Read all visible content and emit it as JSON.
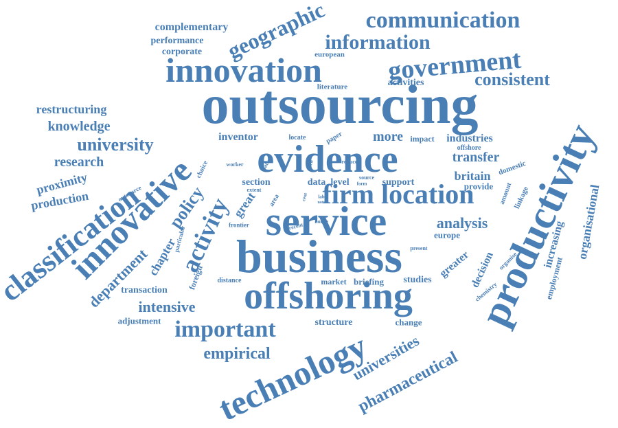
{
  "colors": {
    "word": "#4a7fb5",
    "background": "#ffffff"
  },
  "words": {
    "outsourcing": "outsourcing",
    "business": "business",
    "service": "service",
    "offshoring": "offshoring",
    "evidence": "evidence",
    "innovation": "innovation",
    "productivity": "productivity",
    "technology": "technology",
    "firm_location": "firm location",
    "innovative": "innovative",
    "classification": "classification",
    "government": "government",
    "communication": "communication",
    "geographic": "geographic",
    "information": "information",
    "consistent": "consistent",
    "important": "important",
    "activity": "activity",
    "university": "university",
    "universities": "universities",
    "pharmaceutical": "pharmaceutical",
    "empirical": "empirical",
    "intensive": "intensive",
    "department": "department",
    "policy": "policy",
    "knowledge": "knowledge",
    "research": "research",
    "restructuring": "restructuring",
    "proximity": "proximity",
    "production": "production",
    "complementary": "complementary",
    "performance": "performance",
    "corporate": "corporate",
    "analysis": "analysis",
    "transfer": "transfer",
    "britain": "britain",
    "industries": "industries",
    "more": "more",
    "inventor": "inventor",
    "great": "great",
    "chapter": "chapter",
    "organisational": "organisational",
    "increasing": "increasing",
    "employment": "employment",
    "greater": "greater",
    "decision": "decision",
    "structure": "structure",
    "section": "section",
    "support": "support",
    "data": "data",
    "level": "level",
    "activities": "activities",
    "european": "european",
    "literature": "literature",
    "transaction": "transaction",
    "adjustment": "adjustment",
    "studies": "studies",
    "briefing": "briefing",
    "market": "market",
    "change": "change",
    "europe": "europe",
    "provide": "provide",
    "domestic": "domestic",
    "offshore": "offshore",
    "impact": "impact",
    "locate": "locate",
    "paper": "paper",
    "idea": "idea",
    "reduce": "reduce",
    "source": "source",
    "form": "form",
    "worker": "worker",
    "patent": "patent",
    "choice": "choice",
    "extent": "extent",
    "area": "area",
    "cent": "cent",
    "lab": "lab",
    "note": "note",
    "present": "present",
    "recent": "recent",
    "house": "house",
    "frontier": "frontier",
    "distance": "distance",
    "foreign": "foreign",
    "particular": "particular",
    "outsource": "outsource",
    "linkage": "linkage",
    "amount": "amount",
    "organise": "organise",
    "chemistry": "chemistry"
  }
}
